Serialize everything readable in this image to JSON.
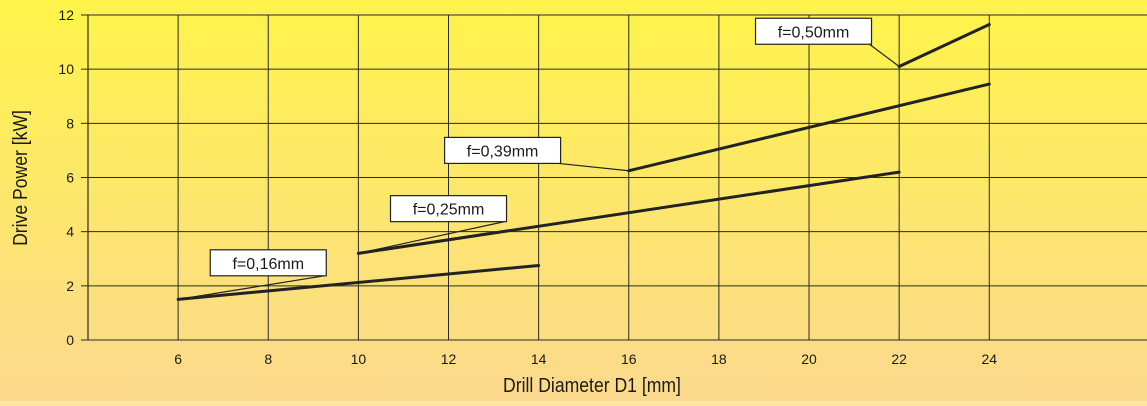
{
  "chart_data": {
    "type": "line",
    "xlabel": "Drill Diameter D1 [mm]",
    "ylabel": "Drive Power [kW]",
    "xlim": [
      4,
      27.5
    ],
    "ylim": [
      0,
      12
    ],
    "x_ticks": [
      6,
      8,
      10,
      12,
      14,
      16,
      18,
      20,
      22,
      24
    ],
    "y_ticks": [
      0,
      2,
      4,
      6,
      8,
      10,
      12
    ],
    "grid": true,
    "series": [
      {
        "name": "f=0,16mm",
        "x": [
          6,
          14
        ],
        "y": [
          1.5,
          2.75
        ],
        "label_anchor": {
          "x": 8,
          "y": 2.85
        }
      },
      {
        "name": "f=0,25mm",
        "x": [
          10,
          22
        ],
        "y": [
          3.2,
          6.2
        ],
        "label_anchor": {
          "x": 12,
          "y": 4.85
        }
      },
      {
        "name": "f=0,39mm",
        "x": [
          16,
          24
        ],
        "y": [
          6.25,
          9.45
        ],
        "label_anchor": {
          "x": 13.2,
          "y": 7.0
        }
      },
      {
        "name": "f=0,50mm",
        "x": [
          22,
          24
        ],
        "y": [
          10.1,
          11.65
        ],
        "label_anchor": {
          "x": 20.1,
          "y": 11.4
        }
      }
    ],
    "colors": {
      "background_top": "#fef44a",
      "background_bottom": "#fcd98e",
      "grid": "#2a2a2a",
      "line": "#222222",
      "text": "#1a1a1a"
    }
  }
}
